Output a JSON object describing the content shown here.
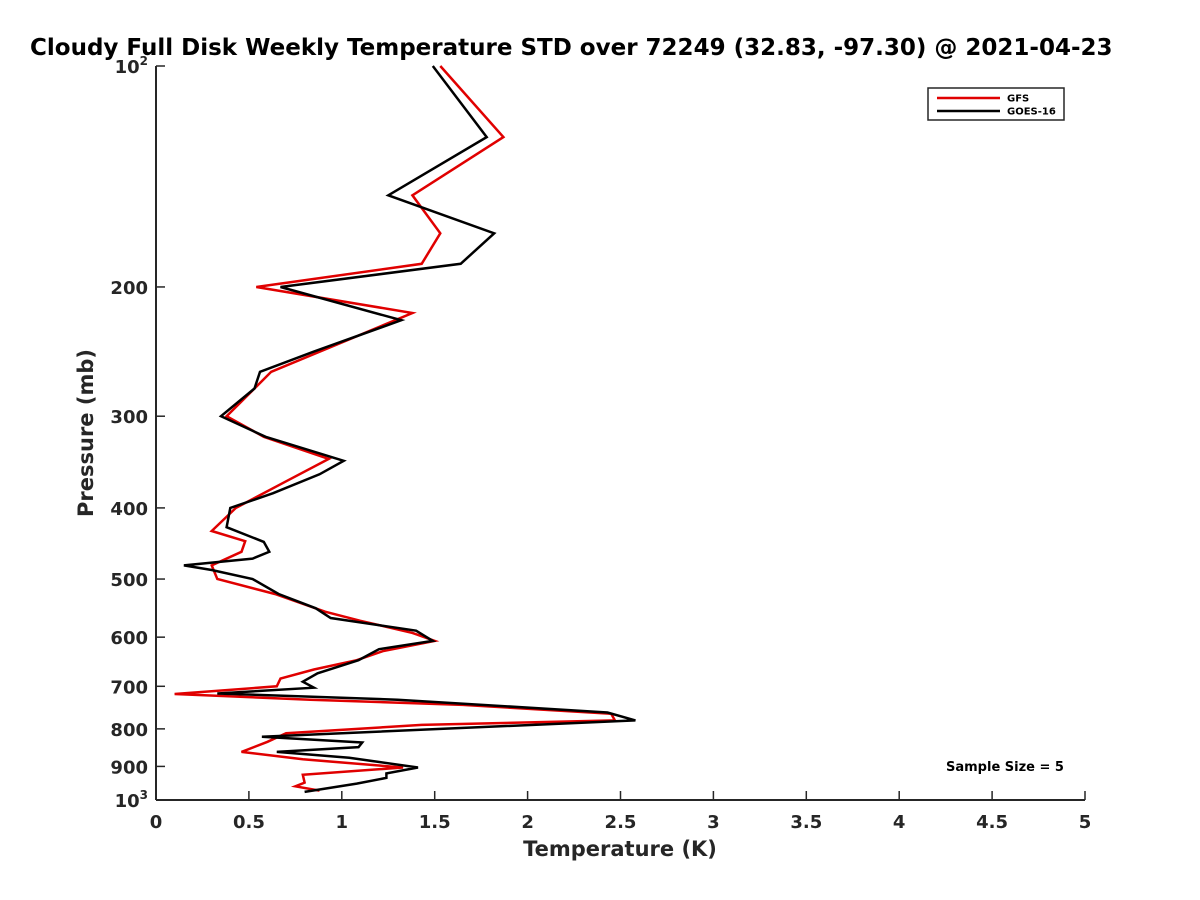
{
  "chart_data": {
    "type": "line",
    "title": "Cloudy Full Disk Weekly Temperature STD over 72249 (32.83, -97.30) @ 2021-04-23",
    "xlabel": "Temperature (K)",
    "ylabel": "Pressure (mb)",
    "xlim": [
      0,
      5
    ],
    "ylim": [
      1000,
      100
    ],
    "y_scale": "log",
    "y_reversed": true,
    "grid": false,
    "legend_position": "top-right",
    "x_ticks": [
      "0",
      "0.5",
      "1",
      "1.5",
      "2",
      "2.5",
      "3",
      "3.5",
      "4",
      "4.5",
      "5"
    ],
    "y_ticks": [
      {
        "value": 100,
        "base": "10",
        "exp": "2"
      },
      {
        "value": 200,
        "label": "200"
      },
      {
        "value": 300,
        "label": "300"
      },
      {
        "value": 400,
        "label": "400"
      },
      {
        "value": 500,
        "label": "500"
      },
      {
        "value": 600,
        "label": "600"
      },
      {
        "value": 700,
        "label": "700"
      },
      {
        "value": 800,
        "label": "800"
      },
      {
        "value": 900,
        "label": "900"
      },
      {
        "value": 1000,
        "base": "10",
        "exp": "3"
      }
    ],
    "annotation": "Sample Size = 5",
    "series": [
      {
        "name": "GFS",
        "color": "#e00000",
        "points": [
          [
            1.53,
            100
          ],
          [
            1.87,
            125
          ],
          [
            1.38,
            150
          ],
          [
            1.53,
            169
          ],
          [
            1.43,
            186
          ],
          [
            0.54,
            200
          ],
          [
            1.38,
            217
          ],
          [
            0.95,
            241
          ],
          [
            0.62,
            261
          ],
          [
            0.53,
            275
          ],
          [
            0.38,
            300
          ],
          [
            0.58,
            320
          ],
          [
            0.93,
            343
          ],
          [
            0.7,
            368
          ],
          [
            0.43,
            400
          ],
          [
            0.3,
            430
          ],
          [
            0.48,
            444
          ],
          [
            0.46,
            459
          ],
          [
            0.3,
            479
          ],
          [
            0.33,
            500
          ],
          [
            0.64,
            524
          ],
          [
            0.91,
            554
          ],
          [
            1.1,
            570
          ],
          [
            1.38,
            592
          ],
          [
            1.5,
            607
          ],
          [
            1.22,
            627
          ],
          [
            1.08,
            645
          ],
          [
            0.85,
            664
          ],
          [
            0.67,
            683
          ],
          [
            0.65,
            700
          ],
          [
            0.1,
            717
          ],
          [
            0.83,
            730
          ],
          [
            1.65,
            742
          ],
          [
            2.45,
            763
          ],
          [
            2.47,
            779
          ],
          [
            1.43,
            790
          ],
          [
            0.7,
            811
          ],
          [
            0.6,
            833
          ],
          [
            0.46,
            860
          ],
          [
            0.79,
            880
          ],
          [
            1.33,
            903
          ],
          [
            0.79,
            924
          ],
          [
            0.8,
            947
          ],
          [
            0.75,
            958
          ],
          [
            0.88,
            971
          ]
        ]
      },
      {
        "name": "GOES-16",
        "color": "#000000",
        "points": [
          [
            1.49,
            100
          ],
          [
            1.78,
            125
          ],
          [
            1.25,
            150
          ],
          [
            1.82,
            169
          ],
          [
            1.64,
            186
          ],
          [
            0.67,
            200
          ],
          [
            1.32,
            222
          ],
          [
            0.85,
            245
          ],
          [
            0.56,
            261
          ],
          [
            0.53,
            275
          ],
          [
            0.35,
            300
          ],
          [
            0.59,
            320
          ],
          [
            1.01,
            345
          ],
          [
            0.88,
            360
          ],
          [
            0.63,
            382
          ],
          [
            0.4,
            400
          ],
          [
            0.38,
            425
          ],
          [
            0.58,
            445
          ],
          [
            0.61,
            459
          ],
          [
            0.52,
            469
          ],
          [
            0.15,
            479
          ],
          [
            0.3,
            486
          ],
          [
            0.52,
            500
          ],
          [
            0.66,
            524
          ],
          [
            0.86,
            548
          ],
          [
            0.94,
            565
          ],
          [
            1.4,
            588
          ],
          [
            1.49,
            607
          ],
          [
            1.2,
            623
          ],
          [
            1.09,
            645
          ],
          [
            0.87,
            672
          ],
          [
            0.79,
            690
          ],
          [
            0.85,
            703
          ],
          [
            0.33,
            716
          ],
          [
            1.3,
            730
          ],
          [
            2.43,
            760
          ],
          [
            2.58,
            779
          ],
          [
            0.57,
            820
          ],
          [
            1.11,
            835
          ],
          [
            1.09,
            847
          ],
          [
            0.65,
            860
          ],
          [
            1.04,
            876
          ],
          [
            1.41,
            903
          ],
          [
            1.24,
            920
          ],
          [
            1.24,
            933
          ],
          [
            1.08,
            950
          ],
          [
            0.8,
            975
          ]
        ]
      }
    ]
  }
}
